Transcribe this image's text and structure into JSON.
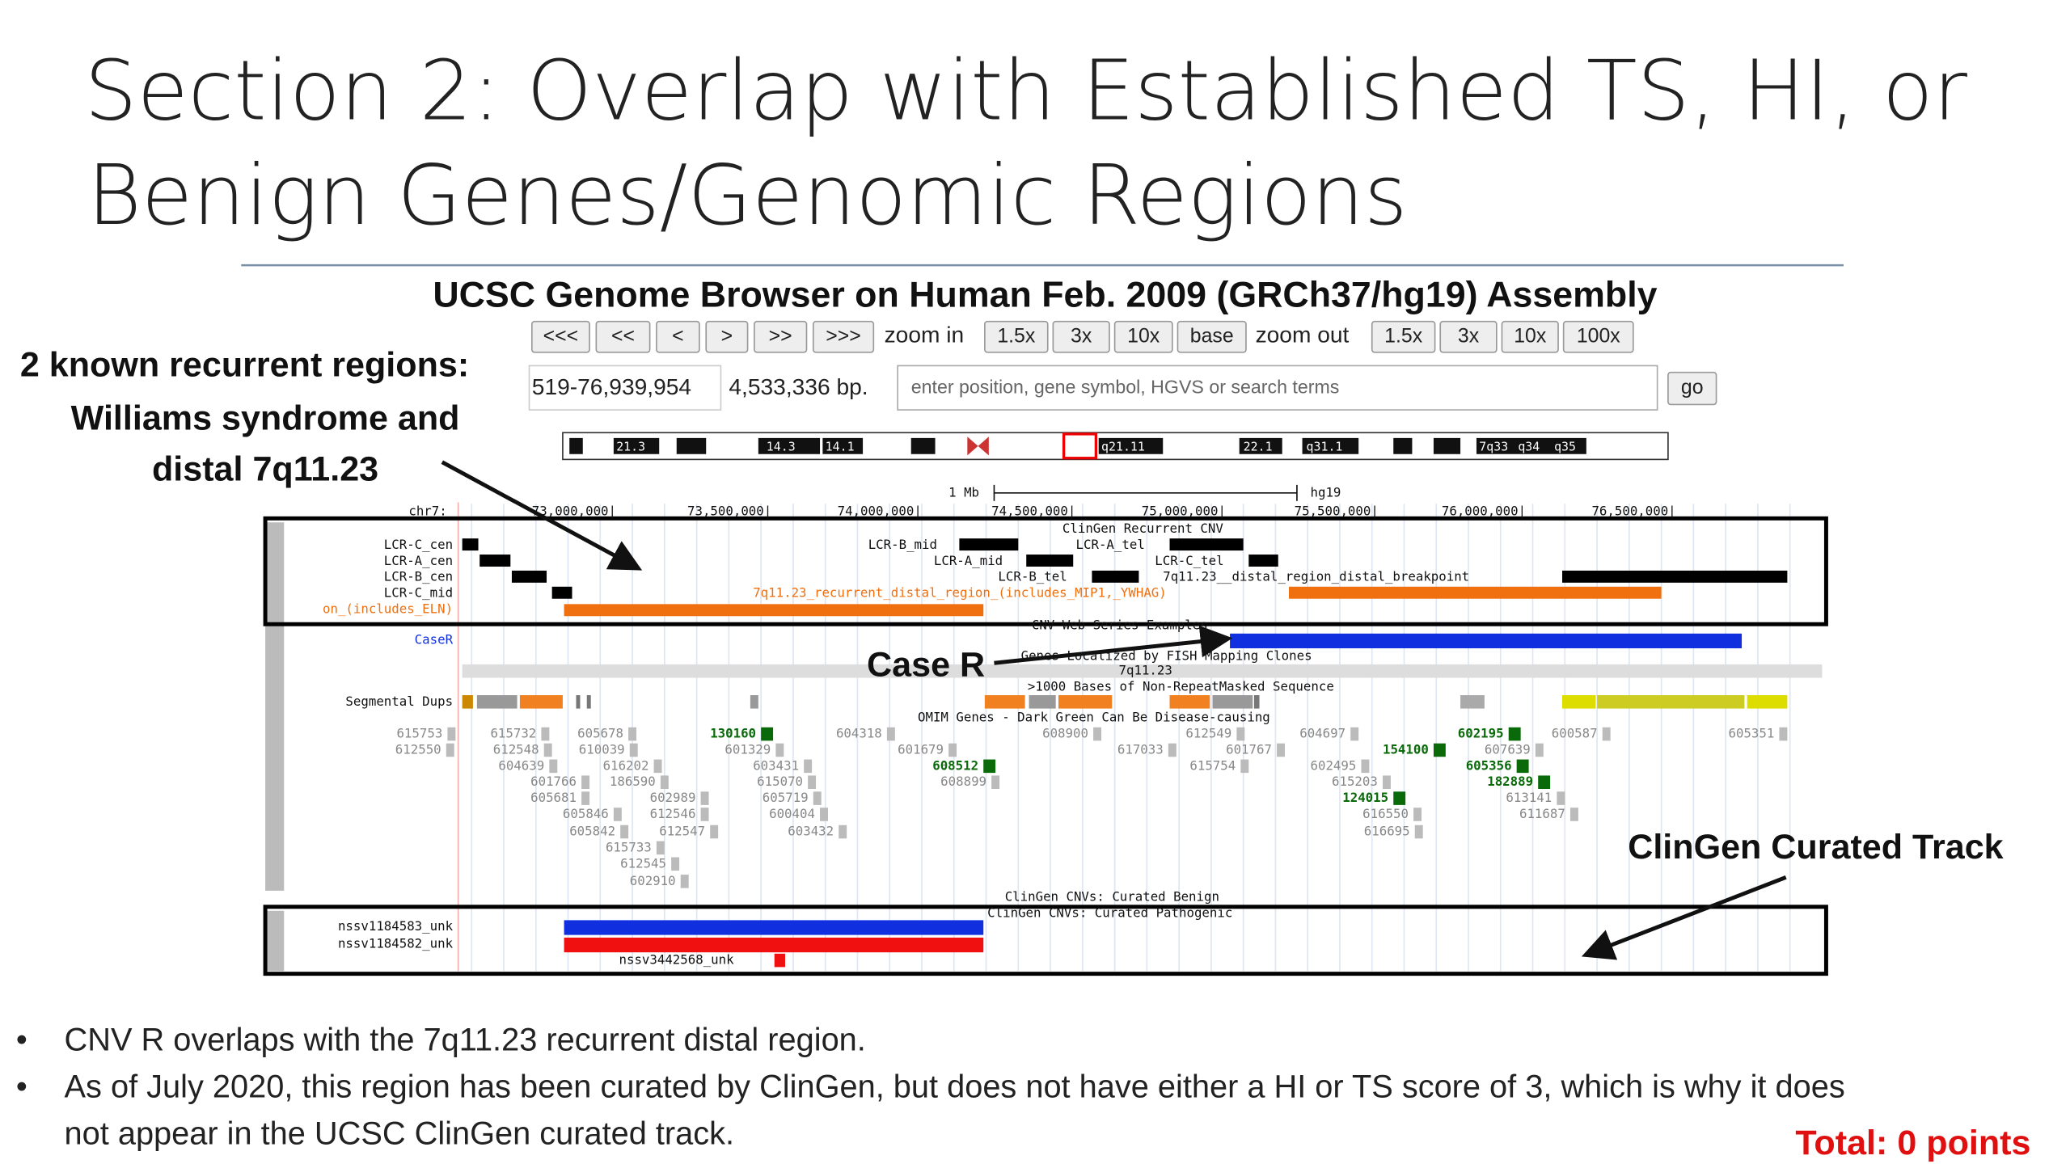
{
  "slide": {
    "title_line1": "Section 2: Overlap with Established TS, HI, or",
    "title_line2": "Benign Genes/Genomic Regions",
    "callouts": [
      "2 known recurrent regions:",
      "Williams syndrome and",
      "distal 7q11.23",
      "Case R",
      "ClinGen Curated Track"
    ],
    "bullets": [
      "CNV R overlaps with the 7q11.23 recurrent distal region.",
      "As of July 2020, this region has been curated by ClinGen, but does not have either a HI or TS score of 3, which is why it does",
      "not appear in the UCSC ClinGen curated track."
    ],
    "bullet_symbol": "•",
    "total": "Total: 0 points"
  },
  "browser": {
    "heading": "UCSC Genome Browser on Human Feb. 2009 (GRCh37/hg19) Assembly",
    "nav_buttons": [
      "<<<",
      "<<",
      "<",
      ">",
      ">>",
      ">>>"
    ],
    "zoom_in_label": "zoom in",
    "zoom_in": [
      "1.5x",
      "3x",
      "10x",
      "base"
    ],
    "zoom_out_label": "zoom out",
    "zoom_out": [
      "1.5x",
      "3x",
      "10x",
      "100x"
    ],
    "position": "519-76,939,954",
    "size": "4,533,336 bp.",
    "search_placeholder": "enter position, gene symbol, HGVS or search terms",
    "go": "go",
    "ideogram_bands": [
      "21.3",
      "14.3",
      "14.1",
      "q21.11",
      "22.1",
      "q31.1",
      "7q33",
      "q34",
      "q35"
    ],
    "scale_label": "1 Mb",
    "assembly": "hg19",
    "chrom": "chr7:",
    "ruler": [
      "73,000,000|",
      "73,500,000|",
      "74,000,000|",
      "74,500,000|",
      "75,000,000|",
      "75,500,000|",
      "76,000,000|",
      "76,500,000|"
    ],
    "recurrent_track": {
      "title": "ClinGen Recurrent CNV",
      "labels": [
        "LCR-C_cen",
        "LCR-A_cen",
        "LCR-B_cen",
        "LCR-C_mid",
        "on_(includes_ELN)"
      ],
      "items": [
        "LCR-B_mid",
        "LCR-A_tel",
        "LCR-A_mid",
        "LCR-C_tel",
        "LCR-B_tel",
        "7q11.23__distal_region_distal_breakpoint",
        "7q11.23_recurrent_distal_region_(includes_MIP1,_YWHAG)"
      ]
    },
    "cnv_title": "CNV Web Series Examples",
    "case_label": "CaseR",
    "fish_title": "Genes Localized by FISH Mapping Clones",
    "fish_item": "7q11.23",
    "nonrepeat_title": ">1000 Bases of Non-RepeatMasked Sequence",
    "segdups_label": "Segmental Dups",
    "omim_title": "OMIM Genes - Dark Green Can Be Disease-causing",
    "omim": [
      "615753",
      "615732",
      "605678",
      "130160",
      "604318",
      "608900",
      "612549",
      "604697",
      "602195",
      "600587",
      "605351",
      "612550",
      "612548",
      "610039",
      "601329",
      "601679",
      "617033",
      "601767",
      "154100",
      "607639",
      "604639",
      "616202",
      "603431",
      "608512",
      "615754",
      "602495",
      "605356",
      "601766",
      "186590",
      "615070",
      "608899",
      "615203",
      "182889",
      "605681",
      "602989",
      "605719",
      "124015",
      "613141",
      "605846",
      "612546",
      "600404",
      "616550",
      "611687",
      "605842",
      "612547",
      "603432",
      "616695",
      "615733",
      "612545",
      "602910"
    ],
    "benign_title": "ClinGen CNVs: Curated Benign",
    "pathogenic_title": "ClinGen CNVs: Curated Pathogenic",
    "curated": [
      "nssv1184583_unk",
      "nssv1184582_unk",
      "nssv3442568_unk"
    ]
  }
}
